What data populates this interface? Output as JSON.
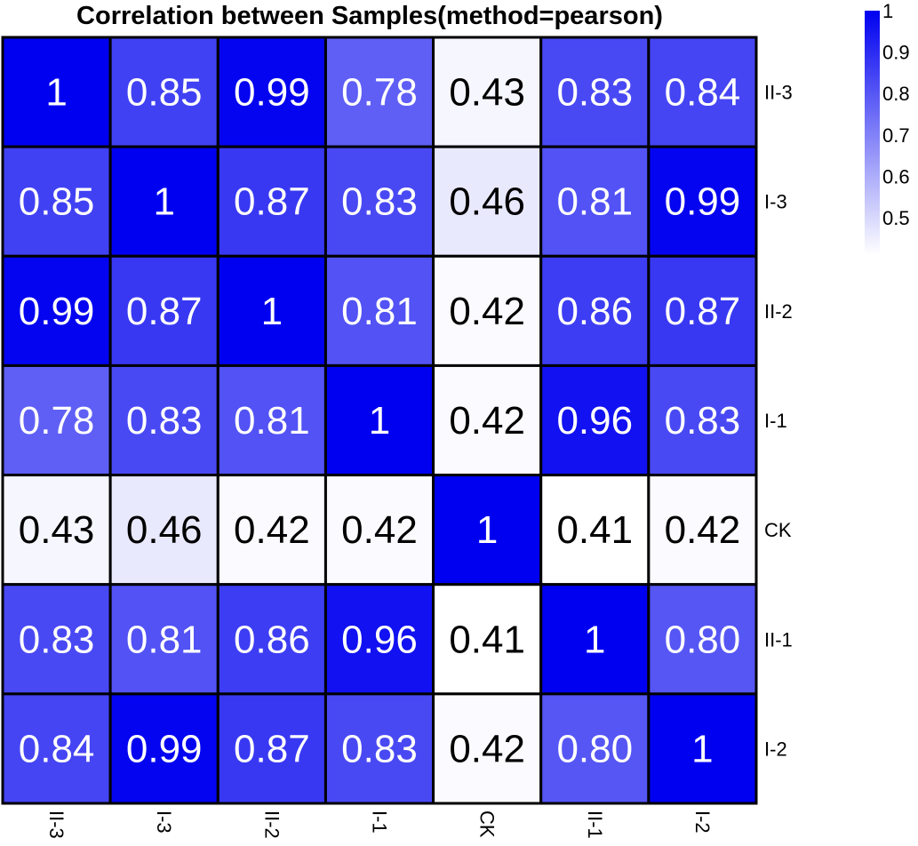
{
  "chart_data": {
    "type": "heatmap",
    "title": "Correlation between Samples(method=pearson)",
    "row_labels": [
      "II-3",
      "I-3",
      "II-2",
      "I-1",
      "CK",
      "II-1",
      "I-2"
    ],
    "col_labels": [
      "II-3",
      "I-3",
      "II-2",
      "I-1",
      "CK",
      "II-1",
      "I-2"
    ],
    "cell_labels": [
      [
        "1",
        "0.85",
        "0.99",
        "0.78",
        "0.43",
        "0.83",
        "0.84"
      ],
      [
        "0.85",
        "1",
        "0.87",
        "0.83",
        "0.46",
        "0.81",
        "0.99"
      ],
      [
        "0.99",
        "0.87",
        "1",
        "0.81",
        "0.42",
        "0.86",
        "0.87"
      ],
      [
        "0.78",
        "0.83",
        "0.81",
        "1",
        "0.42",
        "0.96",
        "0.83"
      ],
      [
        "0.43",
        "0.46",
        "0.42",
        "0.42",
        "1",
        "0.41",
        "0.42"
      ],
      [
        "0.83",
        "0.81",
        "0.86",
        "0.96",
        "0.41",
        "1",
        "0.80"
      ],
      [
        "0.84",
        "0.99",
        "0.87",
        "0.83",
        "0.42",
        "0.80",
        "1"
      ]
    ],
    "values": [
      [
        1,
        0.85,
        0.99,
        0.78,
        0.43,
        0.83,
        0.84
      ],
      [
        0.85,
        1,
        0.87,
        0.83,
        0.46,
        0.81,
        0.99
      ],
      [
        0.99,
        0.87,
        1,
        0.81,
        0.42,
        0.86,
        0.87
      ],
      [
        0.78,
        0.83,
        0.81,
        1,
        0.42,
        0.96,
        0.83
      ],
      [
        0.43,
        0.46,
        0.42,
        0.42,
        1,
        0.41,
        0.42
      ],
      [
        0.83,
        0.81,
        0.86,
        0.96,
        0.41,
        1,
        0.8
      ],
      [
        0.84,
        0.99,
        0.87,
        0.83,
        0.42,
        0.8,
        1
      ]
    ],
    "colorbar": {
      "ticks": [
        "1",
        "0.9",
        "0.8",
        "0.7",
        "0.6",
        "0.5"
      ],
      "tick_values": [
        1,
        0.9,
        0.8,
        0.7,
        0.6,
        0.5
      ],
      "range": [
        0.41,
        1
      ],
      "low_color": "#ffffff",
      "high_color": "#0000f0",
      "placement": "top-right"
    },
    "grid": true,
    "legend": "colorbar"
  }
}
